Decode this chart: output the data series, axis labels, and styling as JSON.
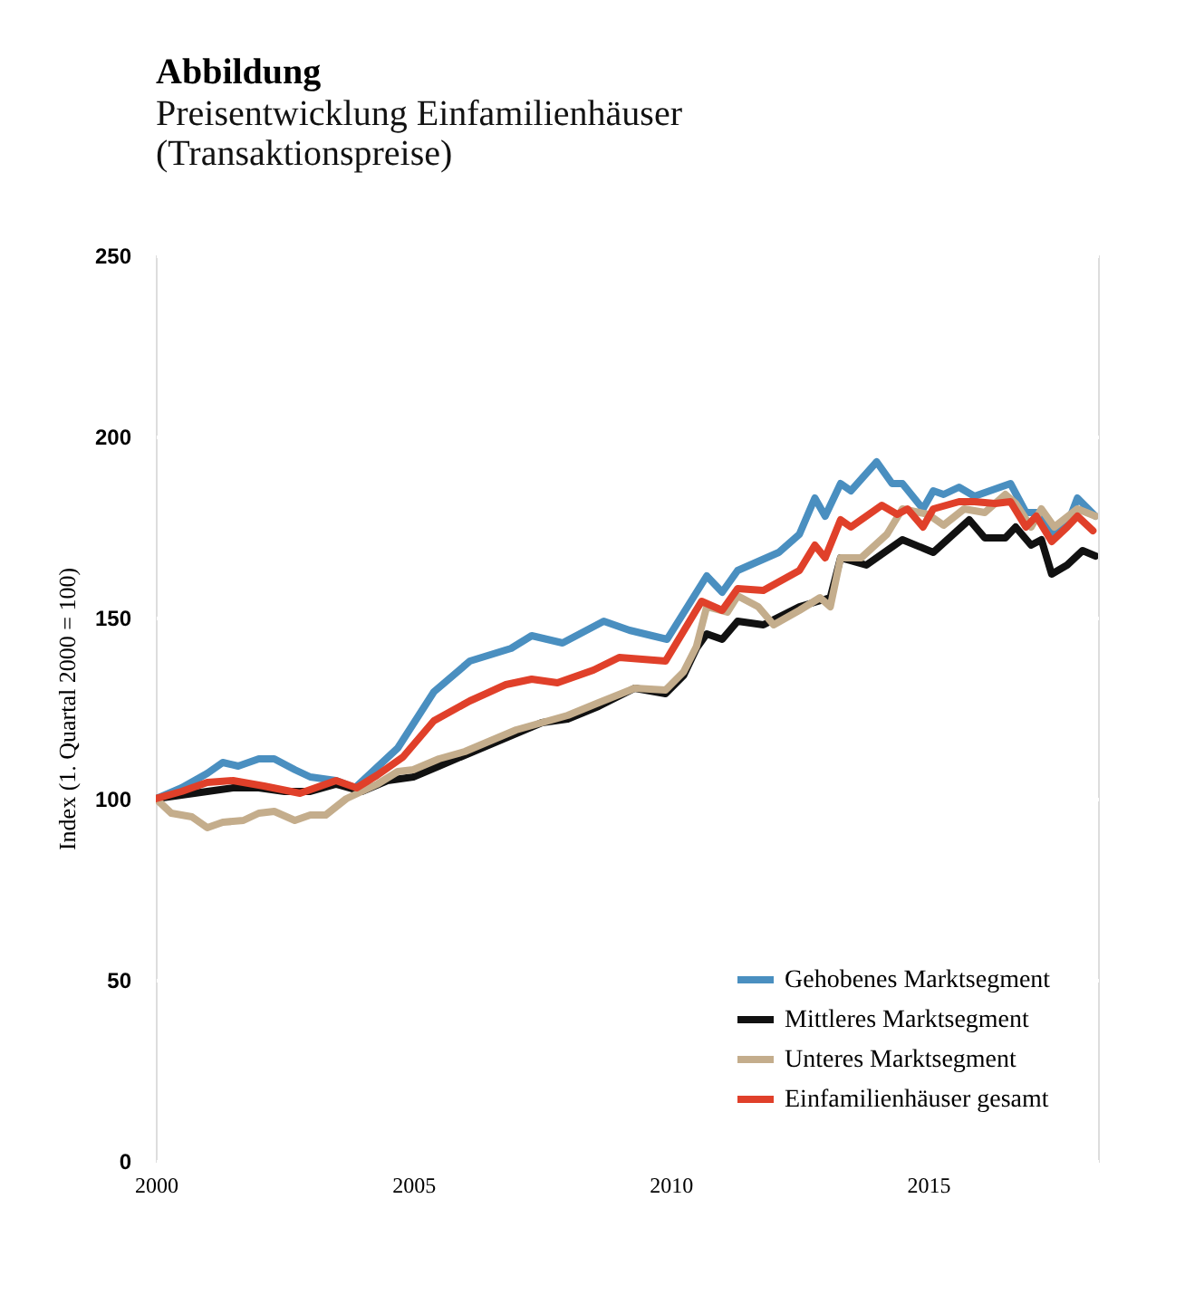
{
  "chart_data": {
    "type": "line",
    "title": "Abbildung",
    "subtitle": "Preisentwicklung Einfamilienhäuser (Transaktionspreise)",
    "ylabel": "Index (1. Quartal 2000 = 100)",
    "xlim": [
      2000,
      2018.3
    ],
    "xticks": [
      2000,
      2005,
      2010,
      2015
    ],
    "ylim": [
      0,
      250
    ],
    "yticks": [
      0,
      50,
      100,
      150,
      200,
      250
    ],
    "grid": "y",
    "legend": "bottom right",
    "marker": "none",
    "line_style": "solid",
    "series": [
      {
        "name": "Gehobenes Marktsegment",
        "color": "#4a8fc0",
        "x": [
          2000,
          2000.5,
          2001,
          2001.3,
          2001.6,
          2002,
          2002.3,
          2002.7,
          2003,
          2003.5,
          2003.87,
          2004.7,
          2005.4,
          2006.1,
          2006.9,
          2007.3,
          2007.9,
          2008.7,
          2009.2,
          2009.93,
          2010.7,
          2011,
          2011.3,
          2012.1,
          2012.5,
          2012.8,
          2013,
          2013.3,
          2013.5,
          2014,
          2014.3,
          2014.5,
          2014.9,
          2015.1,
          2015.3,
          2015.6,
          2015.9,
          2016.6,
          2016.9,
          2017.2,
          2017.4,
          2017.7,
          2017.9,
          2018.25
        ],
        "values": [
          100,
          103,
          107,
          110,
          109,
          111,
          111,
          108,
          106,
          105,
          103,
          114,
          129.5,
          138,
          141.5,
          145,
          143,
          149,
          146.5,
          144,
          161.5,
          157,
          163,
          168,
          173,
          183,
          178,
          187,
          185,
          193,
          187,
          187,
          180,
          185,
          184,
          186,
          183.5,
          187,
          179,
          179,
          173,
          175.5,
          183,
          178
        ]
      },
      {
        "name": "Mittleres Marktsegment",
        "color": "#111111",
        "x": [
          2000,
          2000.5,
          2001,
          2001.5,
          2002,
          2002.5,
          2003,
          2003.5,
          2004,
          2004.5,
          2005,
          2005.5,
          2006,
          2006.5,
          2007,
          2007.5,
          2008,
          2008.6,
          2009.3,
          2009.9,
          2010.25,
          2010.5,
          2010.7,
          2011,
          2011.3,
          2011.8,
          2012.5,
          2013.1,
          2013.3,
          2013.8,
          2014.5,
          2015.1,
          2015.8,
          2016.1,
          2016.5,
          2016.7,
          2017,
          2017.2,
          2017.4,
          2017.7,
          2018,
          2018.25
        ],
        "values": [
          100,
          101,
          102,
          103,
          103,
          102,
          102,
          104,
          102,
          105,
          106,
          109,
          112,
          115,
          118,
          121,
          122,
          125.5,
          130.5,
          129,
          134,
          141.5,
          145.5,
          144,
          149,
          148,
          153,
          155.5,
          166.5,
          164.5,
          171.5,
          168,
          177,
          172,
          172,
          175,
          170,
          171.5,
          162,
          164.5,
          168.5,
          167
        ]
      },
      {
        "name": "Unteres Marktsegment",
        "color": "#c4ad8c",
        "x": [
          2000,
          2000.3,
          2000.7,
          2001,
          2001.3,
          2001.7,
          2002,
          2002.3,
          2002.7,
          2003,
          2003.3,
          2003.7,
          2004,
          2004.3,
          2004.7,
          2005,
          2005.5,
          2006,
          2006.5,
          2007,
          2007.5,
          2008,
          2008.6,
          2009.3,
          2009.9,
          2010.25,
          2010.5,
          2010.7,
          2011.1,
          2011.3,
          2011.7,
          2012,
          2012.5,
          2012.9,
          2013.1,
          2013.3,
          2013.7,
          2014.2,
          2014.5,
          2015,
          2015.3,
          2015.7,
          2016.1,
          2016.5,
          2016.7,
          2017,
          2017.2,
          2017.45,
          2017.9,
          2018.25
        ],
        "values": [
          100,
          96,
          95,
          92,
          93.5,
          94,
          96,
          96.5,
          94,
          95.5,
          95.5,
          100,
          102,
          104,
          107.5,
          108,
          111,
          113,
          116,
          119,
          121,
          123,
          126.5,
          130.5,
          130,
          135,
          142,
          153,
          151.5,
          156,
          153,
          148,
          152,
          155.5,
          153,
          166.5,
          166.5,
          173,
          180,
          178.5,
          175.5,
          180,
          179,
          184,
          181.5,
          175,
          180,
          175,
          180,
          178
        ]
      },
      {
        "name": "Einfamilienhäuser gesamt",
        "color": "#e0402a",
        "x": [
          2000,
          2000.5,
          2001,
          2001.5,
          2002.1,
          2002.8,
          2003.5,
          2003.9,
          2004.3,
          2004.8,
          2005.4,
          2006.1,
          2006.8,
          2007.3,
          2007.8,
          2008.5,
          2009,
          2009.9,
          2010.6,
          2011,
          2011.3,
          2011.8,
          2012.5,
          2012.8,
          2013,
          2013.3,
          2013.5,
          2014.1,
          2014.4,
          2014.6,
          2014.9,
          2015.1,
          2015.6,
          2015.9,
          2016.3,
          2016.6,
          2016.9,
          2017.1,
          2017.4,
          2017.7,
          2017.9,
          2018.2
        ],
        "values": [
          100,
          102,
          104.5,
          105,
          103.5,
          101.5,
          105,
          103,
          106.5,
          111.5,
          121.5,
          127,
          131.5,
          133,
          132,
          135.5,
          139,
          138,
          154.5,
          152,
          158,
          157.5,
          163,
          170,
          166.5,
          177,
          175,
          181,
          178.5,
          180,
          175,
          180,
          182,
          182,
          181.5,
          182,
          175,
          178,
          171,
          175,
          178,
          174
        ]
      }
    ]
  }
}
